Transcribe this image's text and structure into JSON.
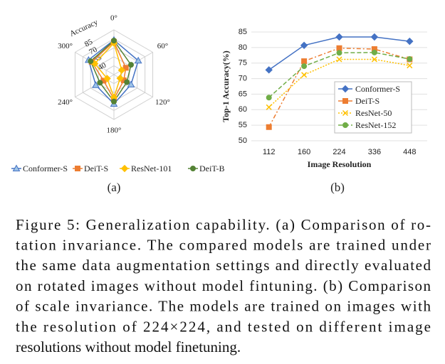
{
  "chart_data": [
    {
      "type": "radar",
      "r_label": "Accuracy",
      "categories": [
        "0°",
        "60°",
        "120°",
        "180°",
        "240°",
        "300°"
      ],
      "rlim": [
        25,
        100
      ],
      "rticks": [
        40,
        55,
        70,
        85
      ],
      "legend": "bottom",
      "panel_label": "(a)",
      "series": [
        {
          "name": "Conformer-S",
          "color": "#4472c4",
          "marker": "triangle",
          "values": [
            83,
            72,
            58,
            74,
            60,
            74
          ]
        },
        {
          "name": "DeiT-S",
          "color": "#ed7d31",
          "marker": "square",
          "values": [
            80,
            48,
            44,
            66,
            45,
            68
          ]
        },
        {
          "name": "ResNet-101",
          "color": "#ffc000",
          "marker": "diamond",
          "values": [
            78,
            40,
            37,
            63,
            38,
            62
          ]
        },
        {
          "name": "DeiT-B",
          "color": "#548235",
          "marker": "circle",
          "values": [
            82,
            58,
            50,
            70,
            52,
            70
          ]
        }
      ]
    },
    {
      "type": "line",
      "x_label": "Image Resolution",
      "y_label": "Top-1 Accuracy(%)",
      "panel_label": "(b)",
      "categories": [
        "112",
        "160",
        "224",
        "336",
        "448"
      ],
      "ylim": [
        50,
        85
      ],
      "yticks": [
        50,
        55,
        60,
        65,
        70,
        75,
        80,
        85
      ],
      "legend": "right",
      "series": [
        {
          "name": "Conformer-S",
          "color": "#4472c4",
          "marker": "diamond",
          "dash": "solid",
          "values": [
            72.8,
            80.7,
            83.4,
            83.4,
            82.0
          ]
        },
        {
          "name": "DeiT-S",
          "color": "#ed7d31",
          "marker": "square",
          "dash": "dashdot",
          "values": [
            54.4,
            75.6,
            79.8,
            79.5,
            76.2
          ]
        },
        {
          "name": "ResNet-50",
          "color": "#ffc000",
          "marker": "cross",
          "dash": "dotted",
          "values": [
            60.8,
            71.2,
            76.2,
            76.2,
            74.2
          ]
        },
        {
          "name": "ResNet-152",
          "color": "#70ad47",
          "marker": "circle",
          "dash": "dashed",
          "values": [
            63.9,
            74.0,
            78.3,
            78.4,
            76.3
          ]
        }
      ]
    }
  ],
  "caption": {
    "lines": [
      "Figure 5: Generalization capability. (a) Comparison of ro-",
      "tation invariance. The compared models are trained under",
      "the same data augmentation settings and directly evaluated",
      "on rotated images without model fintuning. (b) Comparison",
      "of scale invariance. The models are trained on images with",
      "the resolution of 224×224, and tested on different image",
      "resolutions without model finetuning."
    ]
  }
}
